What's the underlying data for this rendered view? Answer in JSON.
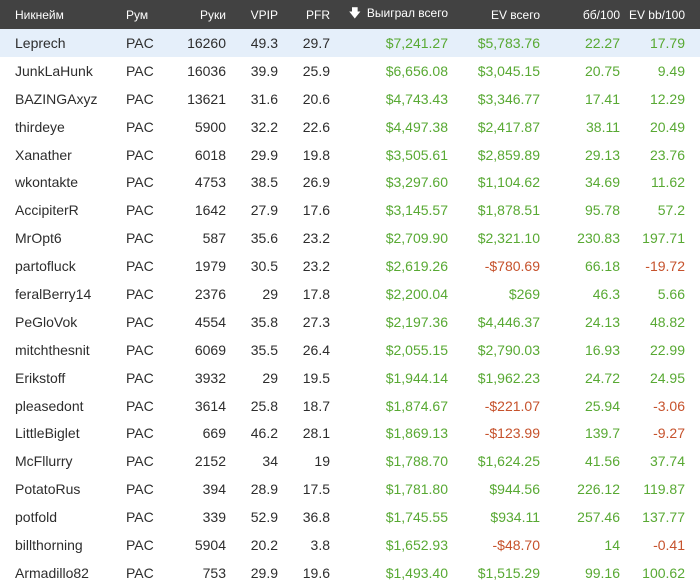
{
  "columns": {
    "nickname": "Никнейм",
    "room": "Рум",
    "hands": "Руки",
    "vpip": "VPIP",
    "pfr": "PFR",
    "won": "Выиграл всего",
    "ev": "EV всего",
    "bb100": "бб/100",
    "evbb100": "EV bb/100"
  },
  "sort_icon": "sort-down-arrow-icon",
  "colors": {
    "header_bg": "#424242",
    "selected_row": "#e5effa",
    "positive": "#58a933",
    "negative": "#c6522c"
  },
  "rows": [
    {
      "nick": "Leprech",
      "room": "PAC",
      "hands": "16260",
      "vpip": "49.3",
      "pfr": "29.7",
      "won": "$7,241.27",
      "ev": "$5,783.76",
      "bb": "22.27",
      "evbb": "17.79"
    },
    {
      "nick": "JunkLaHunk",
      "room": "PAC",
      "hands": "16036",
      "vpip": "39.9",
      "pfr": "25.9",
      "won": "$6,656.08",
      "ev": "$3,045.15",
      "bb": "20.75",
      "evbb": "9.49"
    },
    {
      "nick": "BAZINGAxyz",
      "room": "PAC",
      "hands": "13621",
      "vpip": "31.6",
      "pfr": "20.6",
      "won": "$4,743.43",
      "ev": "$3,346.77",
      "bb": "17.41",
      "evbb": "12.29"
    },
    {
      "nick": "thirdeye",
      "room": "PAC",
      "hands": "5900",
      "vpip": "32.2",
      "pfr": "22.6",
      "won": "$4,497.38",
      "ev": "$2,417.87",
      "bb": "38.11",
      "evbb": "20.49"
    },
    {
      "nick": "Xanather",
      "room": "PAC",
      "hands": "6018",
      "vpip": "29.9",
      "pfr": "19.8",
      "won": "$3,505.61",
      "ev": "$2,859.89",
      "bb": "29.13",
      "evbb": "23.76"
    },
    {
      "nick": "wkontakte",
      "room": "PAC",
      "hands": "4753",
      "vpip": "38.5",
      "pfr": "26.9",
      "won": "$3,297.60",
      "ev": "$1,104.62",
      "bb": "34.69",
      "evbb": "11.62"
    },
    {
      "nick": "AccipiterR",
      "room": "PAC",
      "hands": "1642",
      "vpip": "27.9",
      "pfr": "17.6",
      "won": "$3,145.57",
      "ev": "$1,878.51",
      "bb": "95.78",
      "evbb": "57.2"
    },
    {
      "nick": "MrOpt6",
      "room": "PAC",
      "hands": "587",
      "vpip": "35.6",
      "pfr": "23.2",
      "won": "$2,709.90",
      "ev": "$2,321.10",
      "bb": "230.83",
      "evbb": "197.71"
    },
    {
      "nick": "partofluck",
      "room": "PAC",
      "hands": "1979",
      "vpip": "30.5",
      "pfr": "23.2",
      "won": "$2,619.26",
      "ev": "-$780.69",
      "bb": "66.18",
      "evbb": "-19.72"
    },
    {
      "nick": "feralBerry14",
      "room": "PAC",
      "hands": "2376",
      "vpip": "29",
      "pfr": "17.8",
      "won": "$2,200.04",
      "ev": "$269",
      "bb": "46.3",
      "evbb": "5.66"
    },
    {
      "nick": "PeGloVok",
      "room": "PAC",
      "hands": "4554",
      "vpip": "35.8",
      "pfr": "27.3",
      "won": "$2,197.36",
      "ev": "$4,446.37",
      "bb": "24.13",
      "evbb": "48.82"
    },
    {
      "nick": "mitchthesnit",
      "room": "PAC",
      "hands": "6069",
      "vpip": "35.5",
      "pfr": "26.4",
      "won": "$2,055.15",
      "ev": "$2,790.03",
      "bb": "16.93",
      "evbb": "22.99"
    },
    {
      "nick": "Erikstoff",
      "room": "PAC",
      "hands": "3932",
      "vpip": "29",
      "pfr": "19.5",
      "won": "$1,944.14",
      "ev": "$1,962.23",
      "bb": "24.72",
      "evbb": "24.95"
    },
    {
      "nick": "pleasedont",
      "room": "PAC",
      "hands": "3614",
      "vpip": "25.8",
      "pfr": "18.7",
      "won": "$1,874.67",
      "ev": "-$221.07",
      "bb": "25.94",
      "evbb": "-3.06"
    },
    {
      "nick": "LittleBiglet",
      "room": "PAC",
      "hands": "669",
      "vpip": "46.2",
      "pfr": "28.1",
      "won": "$1,869.13",
      "ev": "-$123.99",
      "bb": "139.7",
      "evbb": "-9.27"
    },
    {
      "nick": "McFllurry",
      "room": "PAC",
      "hands": "2152",
      "vpip": "34",
      "pfr": "19",
      "won": "$1,788.70",
      "ev": "$1,624.25",
      "bb": "41.56",
      "evbb": "37.74"
    },
    {
      "nick": "PotatoRus",
      "room": "PAC",
      "hands": "394",
      "vpip": "28.9",
      "pfr": "17.5",
      "won": "$1,781.80",
      "ev": "$944.56",
      "bb": "226.12",
      "evbb": "119.87"
    },
    {
      "nick": "potfold",
      "room": "PAC",
      "hands": "339",
      "vpip": "52.9",
      "pfr": "36.8",
      "won": "$1,745.55",
      "ev": "$934.11",
      "bb": "257.46",
      "evbb": "137.77"
    },
    {
      "nick": "billthorning",
      "room": "PAC",
      "hands": "5904",
      "vpip": "20.2",
      "pfr": "3.8",
      "won": "$1,652.93",
      "ev": "-$48.70",
      "bb": "14",
      "evbb": "-0.41"
    },
    {
      "nick": "Armadillo82",
      "room": "PAC",
      "hands": "753",
      "vpip": "29.9",
      "pfr": "19.6",
      "won": "$1,493.40",
      "ev": "$1,515.29",
      "bb": "99.16",
      "evbb": "100.62"
    }
  ]
}
